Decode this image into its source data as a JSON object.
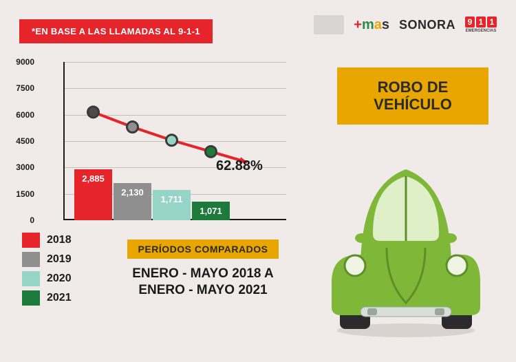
{
  "header": {
    "banner": "*EN BASE A LAS LLAMADAS AL 9-1-1"
  },
  "logos": {
    "sonora": "SONORA",
    "emergencias_d1": "9",
    "emergencias_d2": "1",
    "emergencias_d3": "1",
    "emergencias_sub": "EMERGENCIAS"
  },
  "chart": {
    "type": "bar+line",
    "ylim": [
      0,
      9000
    ],
    "yticks": [
      0,
      1500,
      3000,
      4500,
      6000,
      7500,
      9000
    ],
    "bars": [
      {
        "year": "2018",
        "value": 2885,
        "label": "2,885",
        "color": "#e6252a"
      },
      {
        "year": "2019",
        "value": 2130,
        "label": "2,130",
        "color": "#8f8f8f"
      },
      {
        "year": "2020",
        "value": 1711,
        "label": "1,711",
        "color": "#95d4c6"
      },
      {
        "year": "2021",
        "value": 1071,
        "label": "1,071",
        "color": "#1e7a3a"
      }
    ],
    "trend": {
      "color": "#e6252a",
      "marker_stroke": "#3a3a3a",
      "marker_fills": [
        "#4a4a4a",
        "#8f8f8f",
        "#95d4c6",
        "#1e7a3a"
      ],
      "points_y": [
        6150,
        5300,
        4550,
        3900
      ]
    },
    "pct_label": "62.88%",
    "background": "#f0ebe8",
    "axis_color": "#1a1a1a",
    "grid_color": "#c4c0bd"
  },
  "legend": [
    {
      "label": "2018",
      "color": "#e6252a"
    },
    {
      "label": "2019",
      "color": "#8f8f8f"
    },
    {
      "label": "2020",
      "color": "#95d4c6"
    },
    {
      "label": "2021",
      "color": "#1e7a3a"
    }
  ],
  "periods": {
    "badge": "PERÍODOS COMPARADOS",
    "line1": "ENERO - MAYO 2018 A",
    "line2": "ENERO - MAYO 2021"
  },
  "title": {
    "line1": "ROBO DE",
    "line2": "VEHÍCULO"
  },
  "car": {
    "body": "#7fb838",
    "dark": "#5e8e2a",
    "window": "#dff0c8",
    "tire": "#2b2b2b"
  }
}
